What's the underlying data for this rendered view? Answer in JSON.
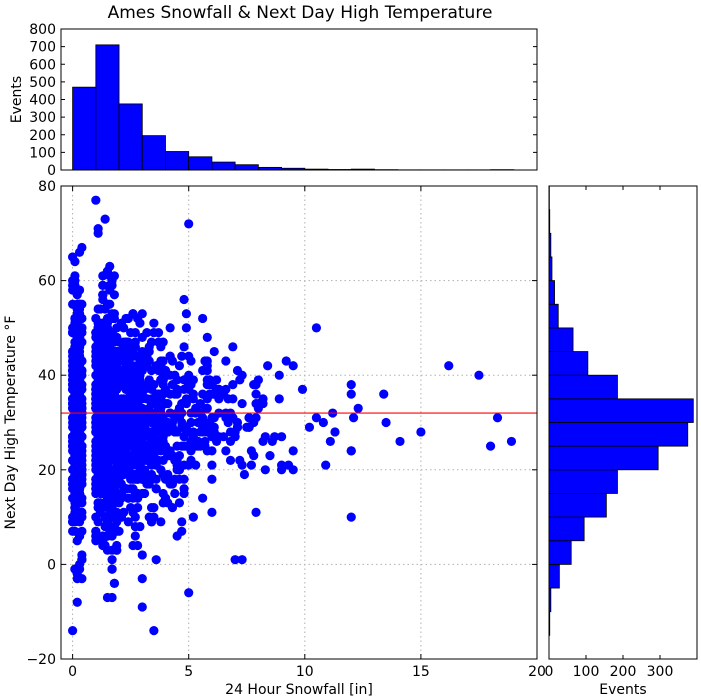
{
  "chart_data": {
    "title": "Ames Snowfall & Next Day High Temperature",
    "scatter": {
      "type": "scatter",
      "xlabel": "24 Hour Snowfall [in]",
      "ylabel": "Next Day High Temperature °F",
      "xlim": [
        -0.5,
        20
      ],
      "ylim": [
        -20,
        80
      ],
      "xticks": [
        "0",
        "5",
        "10",
        "15",
        "20"
      ],
      "yticks": [
        "−20",
        "0",
        "20",
        "40",
        "60",
        "80"
      ],
      "grid": true,
      "reference_line_y": 32,
      "color": "#0000ff",
      "reference_color": "#ff0000"
    },
    "top_histogram": {
      "type": "bar",
      "ylabel": "Events",
      "bin_width": 1,
      "bin_starts": [
        0,
        1,
        2,
        3,
        4,
        5,
        6,
        7,
        8,
        9,
        10,
        11,
        12,
        13,
        14,
        15,
        16,
        17,
        18,
        19
      ],
      "values": [
        470,
        710,
        375,
        195,
        105,
        75,
        45,
        30,
        15,
        10,
        5,
        3,
        5,
        2,
        1,
        1,
        1,
        1,
        2,
        0
      ],
      "ylim": [
        0,
        800
      ],
      "yticks": [
        "0",
        "100",
        "200",
        "300",
        "400",
        "500",
        "600",
        "700",
        "800"
      ],
      "color": "#0000ff"
    },
    "right_histogram": {
      "type": "bar",
      "orientation": "horizontal",
      "xlabel": "Events",
      "bin_width": 5,
      "bin_starts": [
        -20,
        -15,
        -10,
        -5,
        0,
        5,
        10,
        15,
        20,
        25,
        30,
        35,
        40,
        45,
        50,
        55,
        60,
        65,
        70,
        75
      ],
      "values": [
        0,
        2,
        5,
        28,
        60,
        95,
        155,
        185,
        295,
        375,
        390,
        185,
        105,
        65,
        25,
        15,
        8,
        5,
        2,
        1
      ],
      "xlim": [
        0,
        400
      ],
      "xticks": [
        "0",
        "100",
        "200",
        "300"
      ],
      "color": "#0000ff"
    }
  }
}
